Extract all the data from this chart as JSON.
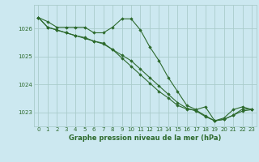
{
  "title": "Graphe pression niveau de la mer (hPa)",
  "background_color": "#cce8f0",
  "grid_color": "#aacccc",
  "line_color": "#2d6a2d",
  "marker_color": "#2d6a2d",
  "ylim": [
    1022.5,
    1026.85
  ],
  "yticks": [
    1023,
    1024,
    1025,
    1026
  ],
  "xlim": [
    -0.5,
    23.5
  ],
  "xticks": [
    0,
    1,
    2,
    3,
    4,
    5,
    6,
    7,
    8,
    9,
    10,
    11,
    12,
    13,
    14,
    15,
    16,
    17,
    18,
    19,
    20,
    21,
    22,
    23
  ],
  "series": [
    [
      1026.4,
      1026.25,
      1026.05,
      1026.05,
      1026.05,
      1026.05,
      1025.85,
      1025.85,
      1026.05,
      1026.35,
      1026.35,
      1025.95,
      1025.35,
      1024.85,
      1024.25,
      1023.75,
      1023.25,
      1023.1,
      1023.2,
      1022.7,
      1022.8,
      1023.1,
      1023.2,
      1023.1
    ],
    [
      1026.4,
      1026.05,
      1025.95,
      1025.85,
      1025.75,
      1025.65,
      1025.55,
      1025.45,
      1025.25,
      1025.05,
      1024.85,
      1024.55,
      1024.25,
      1023.95,
      1023.65,
      1023.35,
      1023.15,
      1023.05,
      1022.85,
      1022.7,
      1022.75,
      1022.9,
      1023.05,
      1023.1
    ],
    [
      1026.4,
      1026.05,
      1025.95,
      1025.85,
      1025.75,
      1025.68,
      1025.55,
      1025.48,
      1025.25,
      1024.95,
      1024.65,
      1024.35,
      1024.05,
      1023.75,
      1023.52,
      1023.25,
      1023.12,
      1023.08,
      1022.88,
      1022.7,
      1022.75,
      1022.9,
      1023.12,
      1023.12
    ]
  ]
}
